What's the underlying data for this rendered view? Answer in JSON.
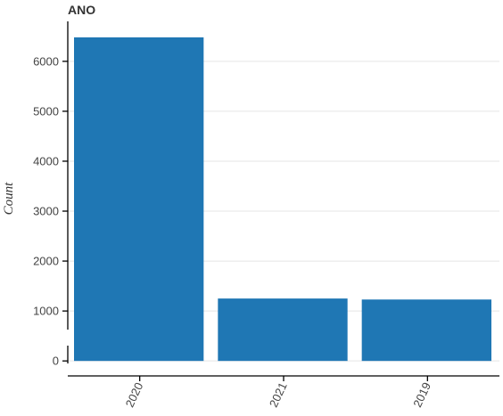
{
  "chart_data": {
    "type": "bar",
    "title": "ANO",
    "xlabel": "",
    "ylabel": "Count",
    "categories": [
      "2020",
      "2021",
      "2019"
    ],
    "values": [
      6480,
      1250,
      1230
    ],
    "yticks": [
      0,
      1000,
      2000,
      3000,
      4000,
      5000,
      6000
    ],
    "ylim": [
      -300,
      6800
    ],
    "bar_color": "#1f77b4",
    "grid": true,
    "legend": "none"
  }
}
